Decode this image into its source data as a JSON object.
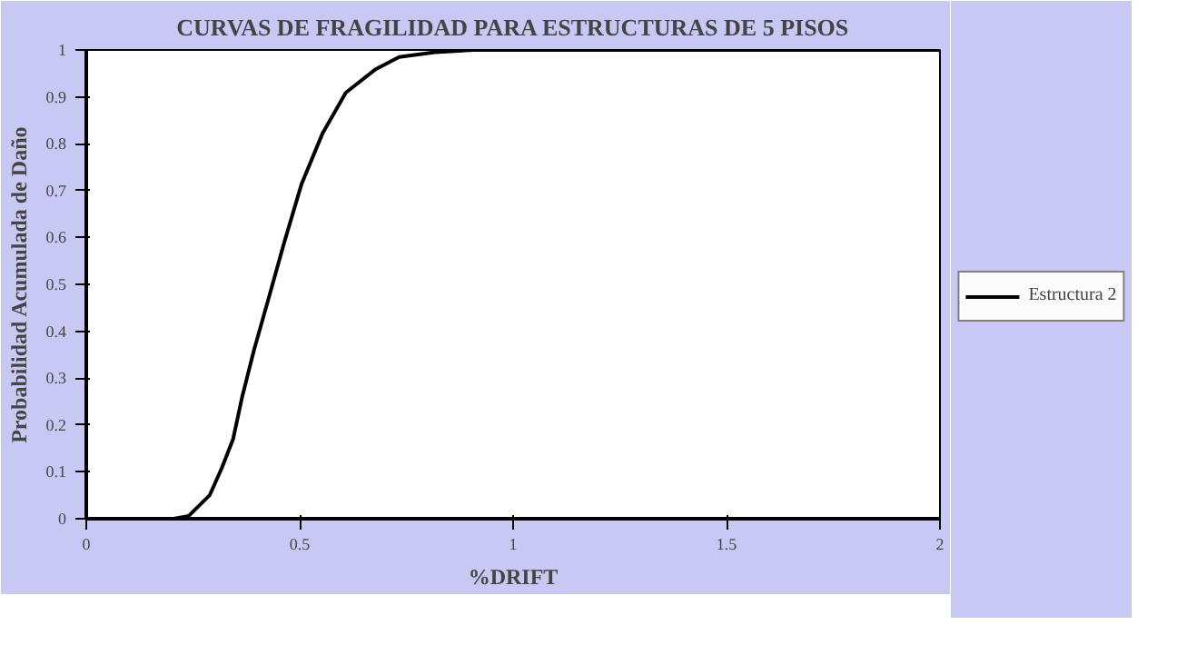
{
  "chart_data": {
    "type": "line",
    "title": "CURVAS DE FRAGILIDAD PARA ESTRUCTURAS DE 5 PISOS",
    "xlabel": "%DRIFT",
    "ylabel": "Probabilidad Acumulada de Daño",
    "x": [
      0.205,
      0.24,
      0.289,
      0.317,
      0.344,
      0.365,
      0.393,
      0.428,
      0.463,
      0.504,
      0.553,
      0.608,
      0.678,
      0.733,
      0.817,
      0.907,
      1.2,
      1.6,
      2
    ],
    "series": [
      {
        "name": "Estructura 2",
        "color": "#000000",
        "values": [
          0,
          0.006,
          0.05,
          0.107,
          0.17,
          0.259,
          0.36,
          0.473,
          0.587,
          0.713,
          0.821,
          0.909,
          0.959,
          0.985,
          0.995,
          1,
          1,
          1,
          1
        ]
      }
    ],
    "xlim": [
      0,
      2
    ],
    "ylim": [
      0,
      1
    ],
    "xticks": [
      0,
      0.5,
      1,
      1.5,
      2
    ],
    "yticks": [
      0,
      0.1,
      0.2,
      0.3,
      0.4,
      0.5,
      0.6,
      0.7,
      0.8,
      0.9,
      1
    ],
    "grid": false,
    "legend": "right",
    "marker": "none",
    "line_style": "solid"
  }
}
